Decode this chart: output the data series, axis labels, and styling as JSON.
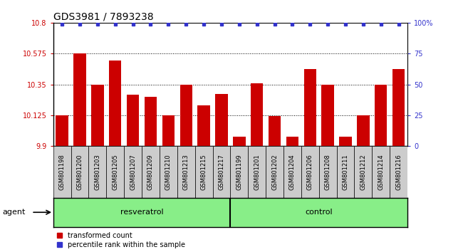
{
  "title": "GDS3981 / 7893238",
  "samples": [
    "GSM801198",
    "GSM801200",
    "GSM801203",
    "GSM801205",
    "GSM801207",
    "GSM801209",
    "GSM801210",
    "GSM801213",
    "GSM801215",
    "GSM801217",
    "GSM801199",
    "GSM801201",
    "GSM801202",
    "GSM801204",
    "GSM801206",
    "GSM801208",
    "GSM801211",
    "GSM801212",
    "GSM801214",
    "GSM801216"
  ],
  "bar_values": [
    10.125,
    10.575,
    10.35,
    10.525,
    10.275,
    10.26,
    10.125,
    10.35,
    10.195,
    10.28,
    9.97,
    10.36,
    10.12,
    9.97,
    10.46,
    10.35,
    9.97,
    10.125,
    10.35,
    10.46
  ],
  "resveratrol_count": 10,
  "control_count": 10,
  "ylim_left": [
    9.9,
    10.8
  ],
  "ylim_right": [
    0,
    100
  ],
  "yticks_left": [
    9.9,
    10.125,
    10.35,
    10.575,
    10.8
  ],
  "yticks_right": [
    0,
    25,
    50,
    75,
    100
  ],
  "bar_color": "#cc0000",
  "dot_color": "#3333cc",
  "resveratrol_label": "resveratrol",
  "control_label": "control",
  "agent_label": "agent",
  "legend_bar_label": "transformed count",
  "legend_dot_label": "percentile rank within the sample",
  "sample_bg_color": "#cccccc",
  "green_color": "#88ee88",
  "title_fontsize": 10,
  "tick_fontsize": 7,
  "sample_fontsize": 6,
  "label_fontsize": 8,
  "legend_fontsize": 7
}
